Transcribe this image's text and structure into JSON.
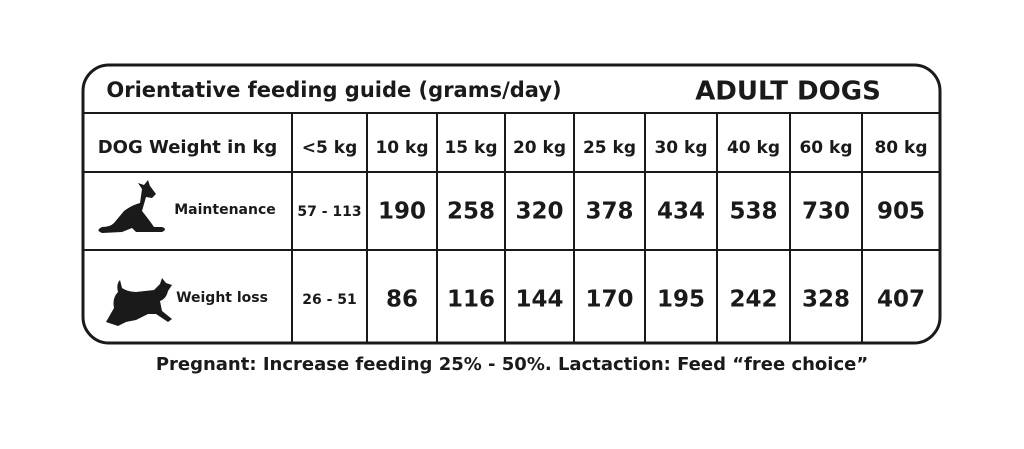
{
  "header": {
    "title": "Orientative feeding guide (grams/day)",
    "subtitle": "ADULT DOGS"
  },
  "table": {
    "columns": [
      "DOG Weight in kg",
      "<5 kg",
      "10 kg",
      "15 kg",
      "20 kg",
      "25 kg",
      "30 kg",
      "40 kg",
      "60 kg",
      "80 kg"
    ],
    "rows": [
      [
        "Maintenance",
        "57 - 113",
        190,
        258,
        320,
        378,
        434,
        538,
        730,
        905
      ],
      [
        "Weight loss",
        "26 - 51",
        86,
        116,
        144,
        170,
        195,
        242,
        328,
        407
      ]
    ]
  },
  "footer": {
    "note": "Pregnant: Increase feeding 25% - 50%. Lactaction: Feed “free choice”"
  }
}
